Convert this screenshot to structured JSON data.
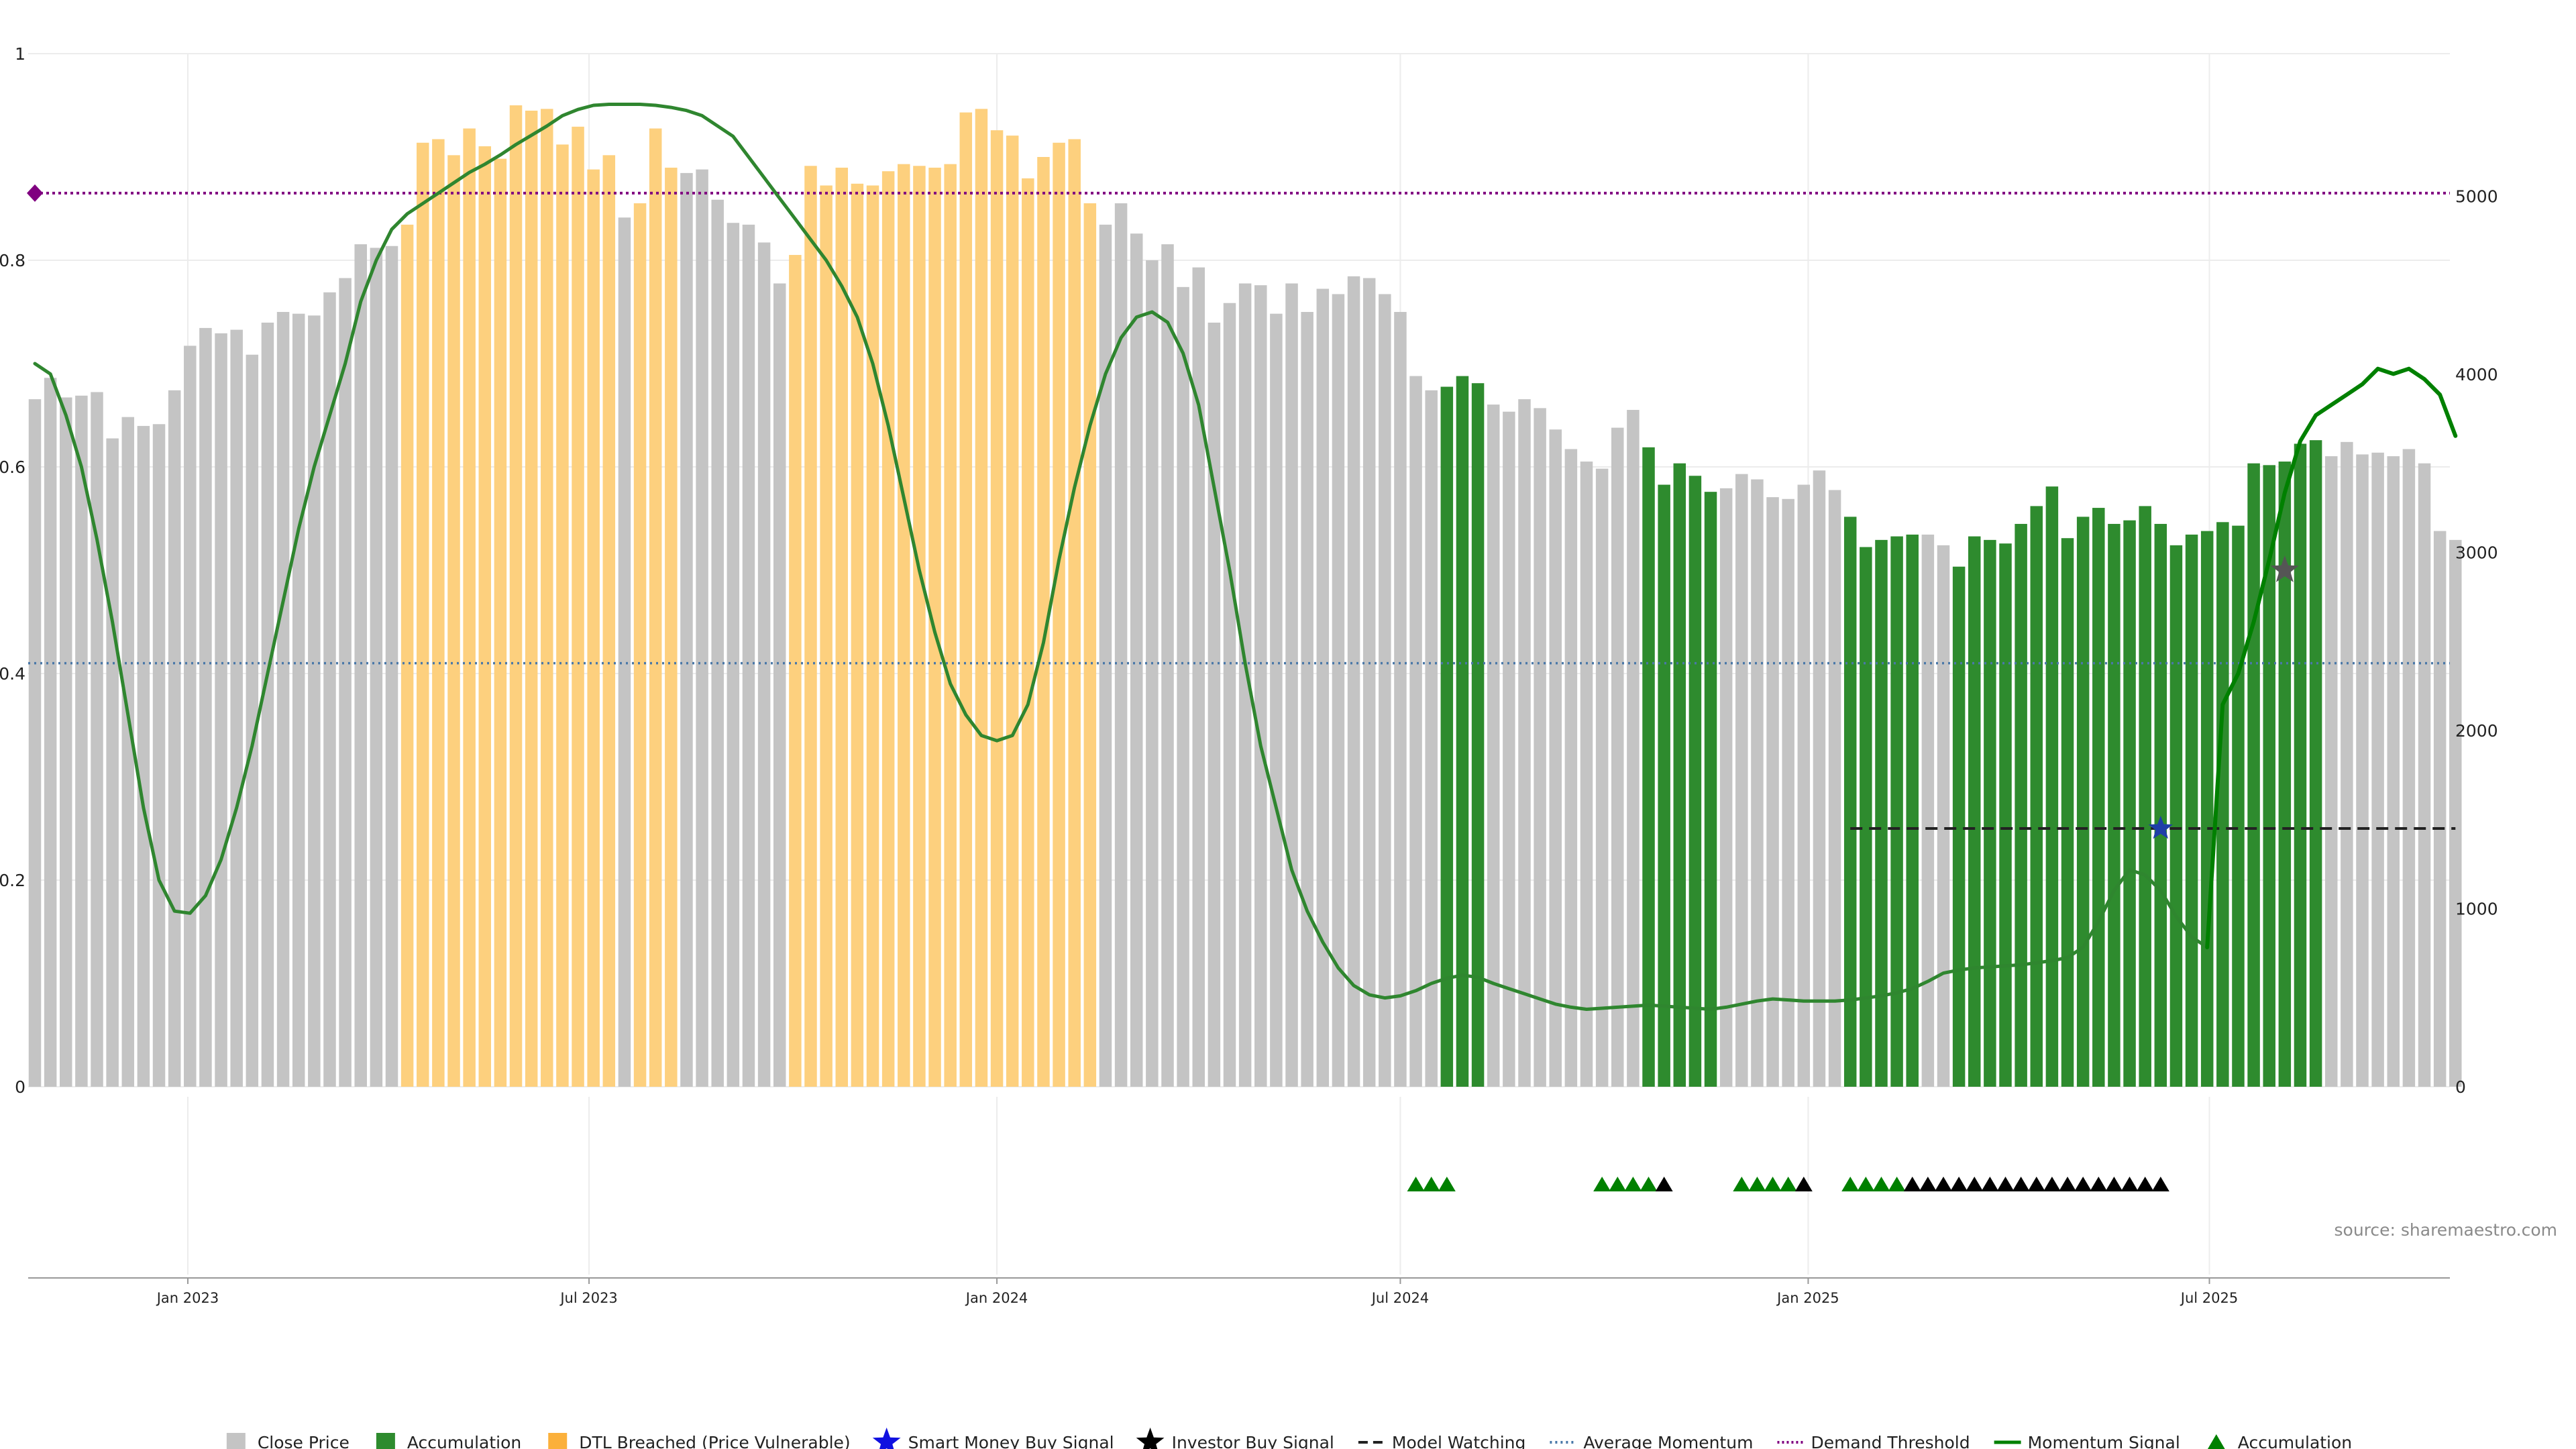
{
  "source_label": "source: sharemaestro.com",
  "legend": [
    {
      "key": "close",
      "label": "Close Price"
    },
    {
      "key": "accumulation_bar",
      "label": "Accumulation"
    },
    {
      "key": "dtl",
      "label": "DTL Breached (Price Vulnerable)"
    },
    {
      "key": "smart_money",
      "label": "Smart Money Buy Signal"
    },
    {
      "key": "investor",
      "label": "Investor Buy Signal"
    },
    {
      "key": "model_watching",
      "label": "Model Watching"
    },
    {
      "key": "avg_momentum",
      "label": "Average Momentum"
    },
    {
      "key": "demand",
      "label": "Demand Threshold"
    },
    {
      "key": "momentum",
      "label": "Momentum Signal"
    },
    {
      "key": "accumulation_marker",
      "label": "Accumulation"
    }
  ],
  "colors": {
    "close": "#c4c4c4",
    "accumulation": "#2e8b2e",
    "dtl": "#fdd07e",
    "momentum": "#2f862f",
    "momentum_bright": "#008000",
    "avg_momentum": "#4a78a8",
    "demand": "#800080",
    "model_watching": "#222222",
    "smart_money": "#1f3fa8",
    "investor": "#555555",
    "acc_marker": "#008000",
    "inv_marker": "#000000"
  },
  "chart_data": {
    "type": "bar",
    "title": "",
    "xlabel": "",
    "ylabel_left": "",
    "ylabel_right": "",
    "ylim_left": [
      0,
      1
    ],
    "ylim_right": [
      0,
      5800
    ],
    "grid": true,
    "legend_position": "bottom",
    "left_ticks": [
      "0",
      "0.2",
      "0.4",
      "0.6",
      "0.8",
      "1"
    ],
    "right_ticks": [
      "0",
      "1000",
      "2000",
      "3000",
      "4000",
      "5000"
    ],
    "x_ticks": [
      "Jan 2023",
      "Jul 2023",
      "Jan 2024",
      "Jul 2024",
      "Jan 2025",
      "Jul 2025"
    ],
    "first_week": "2022-10-24",
    "bar_interval_days": 7,
    "close_price": [
      3860,
      3980,
      3870,
      3880,
      3900,
      3640,
      3760,
      3710,
      3720,
      3910,
      4160,
      4260,
      4230,
      4250,
      4110,
      4290,
      4350,
      4340,
      4330,
      4460,
      4540,
      4730,
      4710,
      4720,
      4840,
      5300,
      5320,
      5230,
      5380,
      5280,
      5210,
      5510,
      5480,
      5490,
      5290,
      5390,
      5150,
      5230,
      4880,
      4960,
      5380,
      5160,
      5130,
      5150,
      4980,
      4850,
      4840,
      4740,
      4510,
      4670,
      5170,
      5060,
      5160,
      5070,
      5060,
      5140,
      5180,
      5170,
      5160,
      5180,
      5470,
      5490,
      5370,
      5340,
      5100,
      5220,
      5300,
      5320,
      4960,
      4840,
      4960,
      4790,
      4640,
      4730,
      4490,
      4600,
      4290,
      4400,
      4510,
      4500,
      4340,
      4510,
      4350,
      4480,
      4450,
      4550,
      4540,
      4450,
      4350,
      3990,
      3910,
      3930,
      3990,
      3950,
      3830,
      3790,
      3860,
      3810,
      3690,
      3580,
      3510,
      3470,
      3700,
      3800,
      3590,
      3380,
      3500,
      3430,
      3340,
      3360,
      3440,
      3410,
      3310,
      3300,
      3380,
      3460,
      3350,
      3200,
      3030,
      3070,
      3090,
      3100,
      3100,
      3040,
      2920,
      3090,
      3070,
      3050,
      3160,
      3260,
      3370,
      3080,
      3200,
      3250,
      3160,
      3180,
      3260,
      3160,
      3040,
      3100,
      3120,
      3170,
      3150,
      3500,
      3490,
      3510,
      3610,
      3630,
      3540,
      3620,
      3550,
      3560,
      3540,
      3580,
      3500,
      3120,
      3070
    ],
    "bar_category": "ccccccccccccccccccccccccddddddddddddddcdddcccccccddddddddddddddddddddccccccccccccccccccccccaaaccccccccccaaaaaccccccccaaaaaccaaaaaaaaaaaaaaaaaaaaaaaacccccccccccccccccc",
    "category_key": {
      "c": "close",
      "a": "accumulation",
      "d": "dtl"
    },
    "momentum_signal_path": [
      [
        0,
        0.7
      ],
      [
        1,
        0.69
      ],
      [
        2,
        0.65
      ],
      [
        3,
        0.6
      ],
      [
        4,
        0.53
      ],
      [
        5,
        0.45
      ],
      [
        6,
        0.36
      ],
      [
        7,
        0.27
      ],
      [
        8,
        0.2
      ],
      [
        9,
        0.17
      ],
      [
        10,
        0.168
      ],
      [
        11,
        0.185
      ],
      [
        12,
        0.22
      ],
      [
        13,
        0.27
      ],
      [
        14,
        0.33
      ],
      [
        15,
        0.4
      ],
      [
        16,
        0.47
      ],
      [
        17,
        0.54
      ],
      [
        18,
        0.6
      ],
      [
        19,
        0.65
      ],
      [
        20,
        0.7
      ],
      [
        21,
        0.76
      ],
      [
        22,
        0.8
      ],
      [
        23,
        0.83
      ],
      [
        24,
        0.845
      ],
      [
        25,
        0.855
      ],
      [
        26,
        0.865
      ],
      [
        27,
        0.875
      ],
      [
        28,
        0.885
      ],
      [
        29,
        0.893
      ],
      [
        30,
        0.902
      ],
      [
        31,
        0.912
      ],
      [
        32,
        0.921
      ],
      [
        33,
        0.93
      ],
      [
        34,
        0.94
      ],
      [
        35,
        0.946
      ],
      [
        36,
        0.95
      ],
      [
        37,
        0.951
      ],
      [
        38,
        0.951
      ],
      [
        39,
        0.951
      ],
      [
        40,
        0.95
      ],
      [
        41,
        0.948
      ],
      [
        42,
        0.945
      ],
      [
        43,
        0.94
      ],
      [
        44,
        0.93
      ],
      [
        45,
        0.92
      ],
      [
        46,
        0.9
      ],
      [
        47,
        0.88
      ],
      [
        48,
        0.86
      ],
      [
        49,
        0.84
      ],
      [
        50,
        0.82
      ],
      [
        51,
        0.8
      ],
      [
        52,
        0.775
      ],
      [
        53,
        0.745
      ],
      [
        54,
        0.7
      ],
      [
        55,
        0.64
      ],
      [
        56,
        0.57
      ],
      [
        57,
        0.5
      ],
      [
        58,
        0.44
      ],
      [
        59,
        0.39
      ],
      [
        60,
        0.36
      ],
      [
        61,
        0.34
      ],
      [
        62,
        0.335
      ],
      [
        63,
        0.34
      ],
      [
        64,
        0.37
      ],
      [
        65,
        0.43
      ],
      [
        66,
        0.51
      ],
      [
        67,
        0.58
      ],
      [
        68,
        0.64
      ],
      [
        69,
        0.69
      ],
      [
        70,
        0.725
      ],
      [
        71,
        0.745
      ],
      [
        72,
        0.75
      ],
      [
        73,
        0.74
      ],
      [
        74,
        0.71
      ],
      [
        75,
        0.66
      ],
      [
        76,
        0.58
      ],
      [
        77,
        0.5
      ],
      [
        78,
        0.41
      ],
      [
        79,
        0.33
      ],
      [
        80,
        0.27
      ],
      [
        81,
        0.21
      ],
      [
        82,
        0.17
      ],
      [
        83,
        0.14
      ],
      [
        84,
        0.115
      ],
      [
        85,
        0.098
      ],
      [
        86,
        0.089
      ],
      [
        87,
        0.086
      ],
      [
        88,
        0.088
      ],
      [
        89,
        0.093
      ],
      [
        90,
        0.1
      ],
      [
        91,
        0.105
      ],
      [
        92,
        0.108
      ],
      [
        93,
        0.106
      ],
      [
        94,
        0.1
      ],
      [
        95,
        0.095
      ],
      [
        96,
        0.09
      ],
      [
        97,
        0.085
      ],
      [
        98,
        0.08
      ],
      [
        99,
        0.077
      ],
      [
        100,
        0.075
      ],
      [
        101,
        0.076
      ],
      [
        102,
        0.077
      ],
      [
        103,
        0.078
      ],
      [
        104,
        0.079
      ],
      [
        105,
        0.078
      ],
      [
        106,
        0.077
      ],
      [
        107,
        0.076
      ],
      [
        108,
        0.075
      ],
      [
        109,
        0.077
      ],
      [
        110,
        0.08
      ],
      [
        111,
        0.083
      ],
      [
        112,
        0.085
      ],
      [
        113,
        0.084
      ],
      [
        114,
        0.083
      ],
      [
        115,
        0.083
      ],
      [
        116,
        0.083
      ],
      [
        117,
        0.084
      ],
      [
        118,
        0.086
      ],
      [
        119,
        0.088
      ],
      [
        120,
        0.091
      ],
      [
        121,
        0.095
      ],
      [
        122,
        0.102
      ],
      [
        123,
        0.11
      ],
      [
        124,
        0.113
      ],
      [
        125,
        0.115
      ],
      [
        126,
        0.116
      ],
      [
        127,
        0.117
      ],
      [
        128,
        0.118
      ],
      [
        129,
        0.12
      ],
      [
        130,
        0.122
      ],
      [
        131,
        0.125
      ],
      [
        132,
        0.135
      ],
      [
        133,
        0.16
      ],
      [
        134,
        0.19
      ],
      [
        135,
        0.21
      ],
      [
        136,
        0.205
      ],
      [
        137,
        0.19
      ],
      [
        138,
        0.165
      ],
      [
        139,
        0.145
      ],
      [
        140,
        0.135
      ],
      [
        141,
        0.37
      ],
      [
        142,
        0.4
      ],
      [
        143,
        0.45
      ],
      [
        144,
        0.51
      ],
      [
        145,
        0.575
      ],
      [
        146,
        0.625
      ],
      [
        147,
        0.65
      ],
      [
        148,
        0.66
      ],
      [
        149,
        0.67
      ],
      [
        150,
        0.68
      ],
      [
        151,
        0.695
      ],
      [
        152,
        0.69
      ],
      [
        153,
        0.695
      ],
      [
        154,
        0.685
      ],
      [
        155,
        0.67
      ],
      [
        156,
        0.63
      ]
    ],
    "momentum_bright_from": 141,
    "average_momentum": 0.41,
    "demand_threshold": 0.865,
    "model_watching": {
      "value": 0.25,
      "from": 117,
      "to": 156
    },
    "smart_money_signal": [
      {
        "x": 137,
        "y": 0.25
      }
    ],
    "investor_signal": [
      {
        "x": 145,
        "y": 0.5
      }
    ],
    "accumulation_markers": [
      89,
      90,
      91,
      101,
      102,
      103,
      104,
      110,
      111,
      112,
      113,
      117,
      118,
      119,
      120
    ],
    "investor_markers": [
      105,
      114,
      121,
      122,
      123,
      124,
      125,
      126,
      127,
      128,
      129,
      130,
      131,
      132,
      133,
      134,
      135,
      136,
      137
    ]
  }
}
